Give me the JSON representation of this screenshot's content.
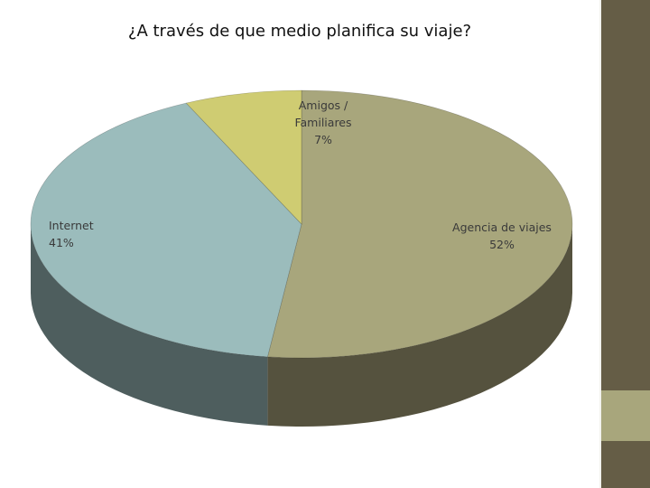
{
  "chart_data": {
    "type": "pie",
    "title": "¿A través de que medio planifica su viaje?",
    "slices": [
      {
        "label": "Agencia de viajes",
        "percent_label": "52%",
        "value": 52,
        "color": "#a8a67c",
        "side_color": "#55523e"
      },
      {
        "label": "Internet",
        "percent_label": "41%",
        "value": 41,
        "color": "#9bbcbc",
        "side_color": "#4e5e5e"
      },
      {
        "label": "Amigos / Familiares",
        "percent_label": "7%",
        "value": 7,
        "color": "#cfcc72",
        "side_color": "#67653a"
      }
    ],
    "three_d": true,
    "legend": "none"
  },
  "theme": {
    "side_band_color": "#655d46",
    "side_accent_color": "#a8a67c"
  }
}
